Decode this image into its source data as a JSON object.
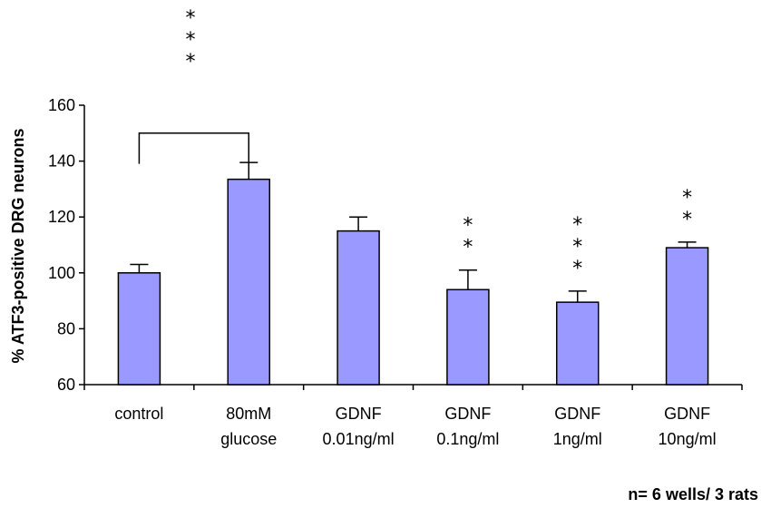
{
  "chart_data": {
    "type": "bar",
    "categories": [
      [
        "control"
      ],
      [
        "80mM",
        "glucose"
      ],
      [
        "GDNF",
        "0.01ng/ml"
      ],
      [
        "GDNF",
        "0.1ng/ml"
      ],
      [
        "GDNF",
        "1ng/ml"
      ],
      [
        "GDNF",
        "10ng/ml"
      ]
    ],
    "values": [
      100,
      133.5,
      115,
      94,
      89.5,
      109
    ],
    "errors": [
      3,
      6,
      5,
      7,
      4,
      2
    ],
    "significance": [
      "",
      "***",
      "",
      "**",
      "***",
      "**"
    ],
    "bracket": {
      "from": 0,
      "to": 1,
      "height": 150
    },
    "ylabel": "% ATF3-positive DRG neurons",
    "yticks": [
      60,
      80,
      100,
      120,
      140,
      160
    ],
    "ylim": [
      60,
      160
    ],
    "bar_color": "#9999ff",
    "grid": false,
    "note": "n= 6 wells/ 3 rats"
  }
}
